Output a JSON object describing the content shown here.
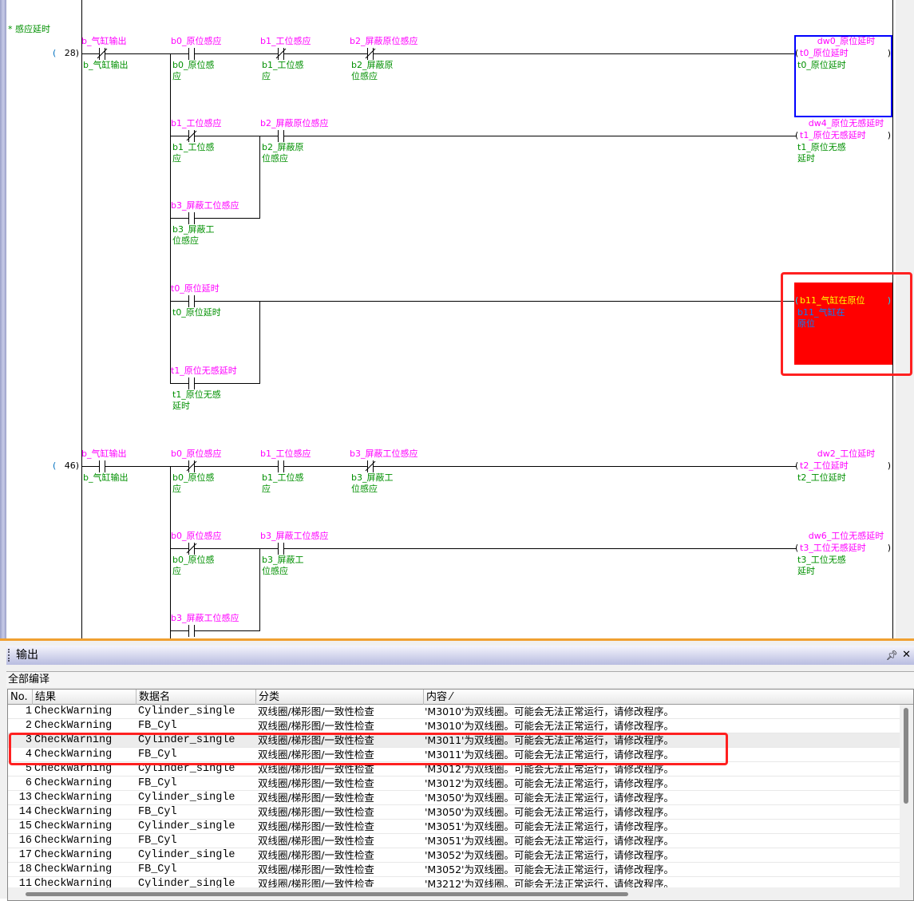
{
  "ladder": {
    "comment": "* 感应延时",
    "rungs": [
      {
        "step": "28",
        "contacts": [
          {
            "label": "b_气缸输出",
            "comment": "b_气缸输出",
            "type": "nc"
          },
          {
            "label": "b0_原位感应",
            "comment": "b0_原位感应",
            "type": "no"
          },
          {
            "label": "b1_工位感应",
            "comment": "b1_工位感应",
            "type": "nc"
          },
          {
            "label": "b2_屏蔽原位感应",
            "comment": "b2_屏蔽原位感应",
            "type": "nc"
          },
          {
            "label": "b1_工位感应",
            "comment": "b1_工位感应",
            "type": "nc"
          },
          {
            "label": "b2_屏蔽原位感应",
            "comment": "b2_屏蔽原位感应",
            "type": "no"
          },
          {
            "label": "b3_屏蔽工位感应",
            "comment": "b3_屏蔽工位感应",
            "type": "no"
          },
          {
            "label": "t0_原位延时",
            "comment": "t0_原位延时",
            "type": "no"
          },
          {
            "label": "t1_原位无感延时",
            "comment": "t1_原位无感延时",
            "type": "no"
          }
        ],
        "coils": [
          {
            "device": "dw0_原位延时",
            "name": "t0_原位延时",
            "comment": "t0_原位延时",
            "selected": true
          },
          {
            "device": "dw4_原位无感延时",
            "name": "t1_原位无感延时",
            "comment": "t1_原位无感延时"
          },
          {
            "device": "",
            "name": "b11_气缸在原位",
            "comment": "b11_气缸在原位",
            "highlight_color": "#ff0000"
          }
        ]
      },
      {
        "step": "46",
        "contacts": [
          {
            "label": "b_气缸输出",
            "comment": "b_气缸输出",
            "type": "no"
          },
          {
            "label": "b0_原位感应",
            "comment": "b0_原位感应",
            "type": "nc"
          },
          {
            "label": "b1_工位感应",
            "comment": "b1_工位感应",
            "type": "no"
          },
          {
            "label": "b3_屏蔽工位感应",
            "comment": "b3_屏蔽工位感应",
            "type": "nc"
          },
          {
            "label": "b0_原位感应",
            "comment": "b0_原位感应",
            "type": "nc"
          },
          {
            "label": "b3_屏蔽工位感应",
            "comment": "b3_屏蔽工位感应",
            "type": "no"
          },
          {
            "label": "b3_屏蔽工位感应",
            "comment": "",
            "type": "no"
          }
        ],
        "coils": [
          {
            "device": "dw2_工位延时",
            "name": "t2_工位延时",
            "comment": "t2_工位延时"
          },
          {
            "device": "dw6_工位无感延时",
            "name": "t3_工位无感延时",
            "comment": "t3_工位无感延时"
          }
        ]
      }
    ]
  },
  "output": {
    "title": "输出",
    "pin_icon": "pin-icon",
    "close_icon": "close-icon",
    "compile_label": "全部编译",
    "columns": [
      "No.",
      "结果",
      "数据名",
      "分类",
      "内容 ⁄"
    ],
    "rows": [
      {
        "no": "1",
        "result": "CheckWarning",
        "data": "Cylinder_single",
        "category": "双线圈/梯形图/一致性检查",
        "content": "'M3010'为双线圈。可能会无法正常运行，请修改程序。"
      },
      {
        "no": "2",
        "result": "CheckWarning",
        "data": "FB_Cyl",
        "category": "双线圈/梯形图/一致性检查",
        "content": "'M3010'为双线圈。可能会无法正常运行，请修改程序。"
      },
      {
        "no": "3",
        "result": "CheckWarning",
        "data": "Cylinder_single",
        "category": "双线圈/梯形图/一致性检查",
        "content": "'M3011'为双线圈。可能会无法正常运行，请修改程序。"
      },
      {
        "no": "4",
        "result": "CheckWarning",
        "data": "FB_Cyl",
        "category": "双线圈/梯形图/一致性检查",
        "content": "'M3011'为双线圈。可能会无法正常运行，请修改程序。"
      },
      {
        "no": "5",
        "result": "CheckWarning",
        "data": "Cylinder_single",
        "category": "双线圈/梯形图/一致性检查",
        "content": "'M3012'为双线圈。可能会无法正常运行，请修改程序。"
      },
      {
        "no": "6",
        "result": "CheckWarning",
        "data": "FB_Cyl",
        "category": "双线圈/梯形图/一致性检查",
        "content": "'M3012'为双线圈。可能会无法正常运行，请修改程序。"
      },
      {
        "no": "13",
        "result": "CheckWarning",
        "data": "Cylinder_single",
        "category": "双线圈/梯形图/一致性检查",
        "content": "'M3050'为双线圈。可能会无法正常运行，请修改程序。"
      },
      {
        "no": "14",
        "result": "CheckWarning",
        "data": "FB_Cyl",
        "category": "双线圈/梯形图/一致性检查",
        "content": "'M3050'为双线圈。可能会无法正常运行，请修改程序。"
      },
      {
        "no": "15",
        "result": "CheckWarning",
        "data": "Cylinder_single",
        "category": "双线圈/梯形图/一致性检查",
        "content": "'M3051'为双线圈。可能会无法正常运行，请修改程序。"
      },
      {
        "no": "16",
        "result": "CheckWarning",
        "data": "FB_Cyl",
        "category": "双线圈/梯形图/一致性检查",
        "content": "'M3051'为双线圈。可能会无法正常运行，请修改程序。"
      },
      {
        "no": "17",
        "result": "CheckWarning",
        "data": "Cylinder_single",
        "category": "双线圈/梯形图/一致性检查",
        "content": "'M3052'为双线圈。可能会无法正常运行，请修改程序。"
      },
      {
        "no": "18",
        "result": "CheckWarning",
        "data": "FB_Cyl",
        "category": "双线圈/梯形图/一致性检查",
        "content": "'M3052'为双线圈。可能会无法正常运行，请修改程序。"
      },
      {
        "no": "11",
        "result": "CheckWarning",
        "data": "Cylinder_single",
        "category": "双线圈/梯形图/一致性检查",
        "content": "'M3212'为双线圈。可能会无法正常运行，请修改程序。"
      }
    ],
    "selected_row": 2,
    "highlight_rows": [
      2,
      3
    ]
  },
  "colors": {
    "device_label": "#ff00ff",
    "comment": "#009000",
    "annotation": "#ff2020",
    "selection": "#0000ff"
  }
}
